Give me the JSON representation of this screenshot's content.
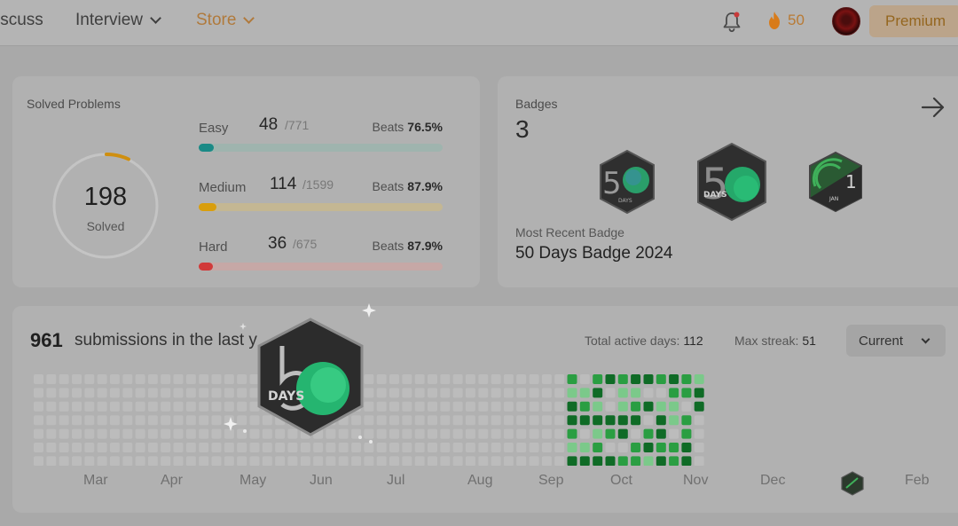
{
  "nav": {
    "items": [
      {
        "label": "iscuss"
      },
      {
        "label": "Interview"
      },
      {
        "label": "Store"
      }
    ],
    "streak_count": "50",
    "premium_label": "Premium"
  },
  "colors": {
    "easy": "#1a8a86",
    "medium": "#d99e0c",
    "hard": "#d13a3a",
    "streak": "#d87b1a",
    "heat_dark": "#0f6b26",
    "heat_mid": "#2a9e42",
    "heat_light": "#7bc98a"
  },
  "solved": {
    "title": "Solved Problems",
    "total": "198",
    "label": "Solved",
    "rows": [
      {
        "label": "Easy",
        "count": "48",
        "total": "/771",
        "beats_label": "Beats",
        "beats": "76.5%",
        "fraction": 0.062
      },
      {
        "label": "Medium",
        "count": "114",
        "total": "/1599",
        "beats_label": "Beats",
        "beats": "87.9%",
        "fraction": 0.071
      },
      {
        "label": "Hard",
        "count": "36",
        "total": "/675",
        "beats_label": "Beats",
        "beats": "87.9%",
        "fraction": 0.053
      }
    ]
  },
  "badges": {
    "title": "Badges",
    "count": "3",
    "recent_label": "Most Recent Badge",
    "recent_name": "50 Days Badge 2024",
    "badge_names": [
      "50-days-badge",
      "50-days-badge-2024",
      "jan-badge"
    ],
    "days_text": "DAYS",
    "jan_text": "JAN",
    "jan_num": "1"
  },
  "submissions": {
    "count": "961",
    "text": "submissions in the last y",
    "active_label": "Total active days:",
    "active_value": "112",
    "streak_label": "Max streak:",
    "streak_value": "51",
    "select_value": "Current",
    "months": [
      "Mar",
      "Apr",
      "May",
      "Jun",
      "Jul",
      "Aug",
      "Sep",
      "Oct",
      "Nov",
      "Dec",
      "",
      "Feb"
    ]
  },
  "overlay_badge": {
    "name": "50-days-badge-large",
    "days_text": "DAYS"
  }
}
